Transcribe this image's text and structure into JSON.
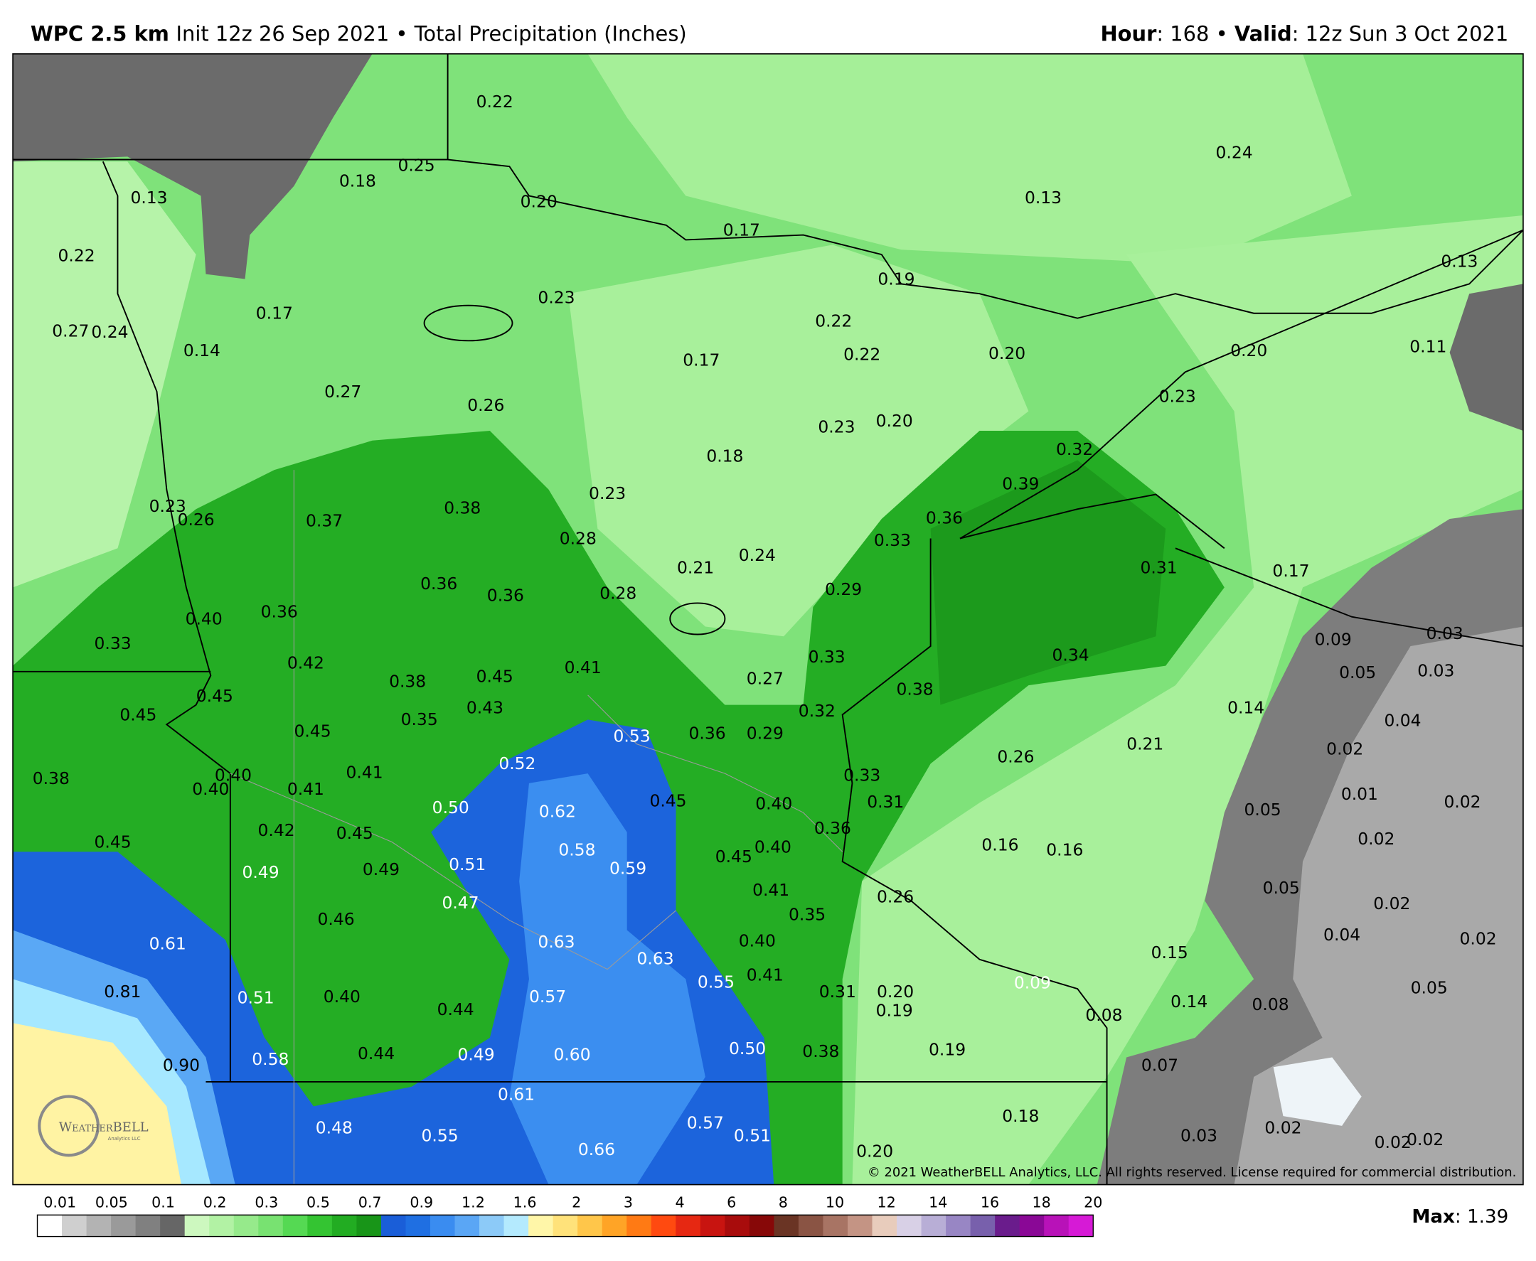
{
  "header": {
    "model": "WPC 2.5 km",
    "subtitle": "Init 12z 26 Sep 2021 • Total Precipitation (Inches)",
    "hour_label": "Hour",
    "hour_text": ": 168 • ",
    "valid_label": "Valid",
    "valid_text": ": 12z Sun 3 Oct 2021"
  },
  "map": {
    "labels": [
      "0.22",
      "0.25",
      "0.18",
      "0.13",
      "0.20",
      "0.17",
      "0.24",
      "0.13",
      "0.13",
      "0.22",
      "0.23",
      "0.17",
      "0.27",
      "0.24",
      "0.14",
      "0.19",
      "0.22",
      "0.22",
      "0.20",
      "0.20",
      "0.11",
      "0.17",
      "0.27",
      "0.26",
      "0.23",
      "0.23",
      "0.20",
      "0.18",
      "0.32",
      "0.39",
      "0.23",
      "0.38",
      "0.37",
      "0.23",
      "0.26",
      "0.36",
      "0.28",
      "0.33",
      "0.24",
      "0.21",
      "0.31",
      "0.17",
      "0.36",
      "0.36",
      "0.28",
      "0.29",
      "0.40",
      "0.36",
      "0.33",
      "0.09",
      "0.03",
      "0.05",
      "0.03",
      "0.34",
      "0.33",
      "0.42",
      "0.38",
      "0.45",
      "0.41",
      "0.27",
      "0.45",
      "0.45",
      "0.38",
      "0.32",
      "0.14",
      "0.04",
      "0.43",
      "0.35",
      "0.45",
      "0.53",
      "0.36",
      "0.29",
      "0.21",
      "0.02",
      "0.26",
      "0.52",
      "0.38",
      "0.40",
      "0.40",
      "0.41",
      "0.41",
      "0.33",
      "0.01",
      "0.02",
      "0.50",
      "0.62",
      "0.45",
      "0.40",
      "0.31",
      "0.05",
      "0.36",
      "0.42",
      "0.45",
      "0.02",
      "0.45",
      "0.58",
      "0.45",
      "0.40",
      "0.16",
      "0.16",
      "0.49",
      "0.49",
      "0.51",
      "0.59",
      "0.41",
      "0.05",
      "0.47",
      "0.35",
      "0.26",
      "0.02",
      "0.46",
      "0.63",
      "0.40",
      "0.04",
      "0.02",
      "0.61",
      "0.63",
      "0.15",
      "0.41",
      "0.55",
      "0.09",
      "0.05",
      "0.81",
      "0.51",
      "0.40",
      "0.57",
      "0.31",
      "0.20",
      "0.44",
      "0.19",
      "0.14",
      "0.08",
      "0.08",
      "0.90",
      "0.58",
      "0.44",
      "0.49",
      "0.60",
      "0.50",
      "0.38",
      "0.19",
      "0.07",
      "0.61",
      "0.18",
      "0.48",
      "0.55",
      "0.57",
      "0.51",
      "0.66",
      "0.03",
      "0.02",
      "0.02",
      "0.02",
      "0.20"
    ],
    "copyright": "© 2021 WeatherBELL Analytics, LLC. All rights reserved. License required for commercial distribution.",
    "logo_name": "WeatherBELL",
    "logo_sub": "Analytics LLC"
  },
  "legend": {
    "ticks": [
      "0.01",
      "0.05",
      "0.1",
      "0.2",
      "0.3",
      "0.5",
      "0.7",
      "0.9",
      "1.2",
      "1.6",
      "2",
      "3",
      "4",
      "6",
      "8",
      "10",
      "12",
      "14",
      "16",
      "18",
      "20"
    ],
    "max_label": "Max",
    "max_text": ": 1.39"
  }
}
